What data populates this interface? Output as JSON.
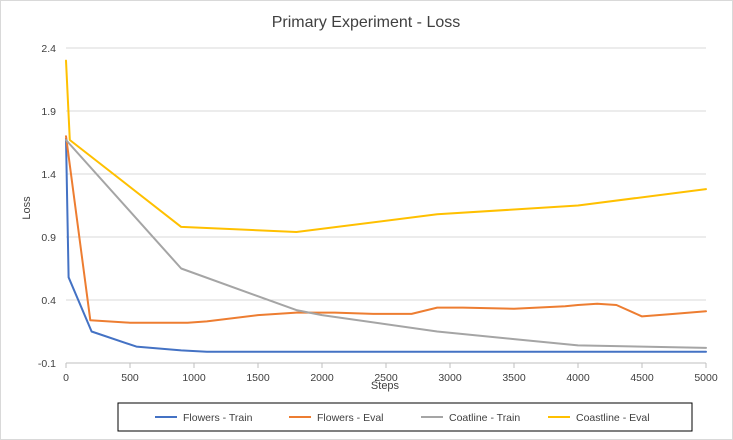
{
  "chart_data": {
    "type": "line",
    "title": "Primary Experiment - Loss",
    "xlabel": "Steps",
    "ylabel": "Loss",
    "xlim": [
      0,
      5000
    ],
    "ylim": [
      -0.1,
      2.4
    ],
    "x_ticks": [
      0,
      500,
      1000,
      1500,
      2000,
      2500,
      3000,
      3500,
      4000,
      4500,
      5000
    ],
    "y_ticks": [
      "-0.1",
      "0.4",
      "0.9",
      "1.4",
      "1.9",
      "2.4"
    ],
    "grid": "horizontal",
    "legend_position": "bottom",
    "series": [
      {
        "name": "Flowers - Train",
        "color": "#4472C4",
        "points": [
          [
            0,
            1.68
          ],
          [
            20,
            0.58
          ],
          [
            200,
            0.15
          ],
          [
            550,
            0.03
          ],
          [
            900,
            0.0
          ],
          [
            1100,
            -0.01
          ],
          [
            2000,
            -0.01
          ],
          [
            3000,
            -0.01
          ],
          [
            4000,
            -0.01
          ],
          [
            5000,
            -0.01
          ]
        ]
      },
      {
        "name": "Flowers - Eval",
        "color": "#ED7D31",
        "points": [
          [
            0,
            1.7
          ],
          [
            190,
            0.24
          ],
          [
            500,
            0.22
          ],
          [
            950,
            0.22
          ],
          [
            1100,
            0.23
          ],
          [
            1500,
            0.28
          ],
          [
            1800,
            0.3
          ],
          [
            2100,
            0.3
          ],
          [
            2400,
            0.29
          ],
          [
            2700,
            0.29
          ],
          [
            2900,
            0.34
          ],
          [
            3100,
            0.34
          ],
          [
            3500,
            0.33
          ],
          [
            3900,
            0.35
          ],
          [
            4000,
            0.36
          ],
          [
            4150,
            0.37
          ],
          [
            4300,
            0.36
          ],
          [
            4500,
            0.27
          ],
          [
            4750,
            0.29
          ],
          [
            5000,
            0.31
          ]
        ]
      },
      {
        "name": "Coatline - Train",
        "color": "#A5A5A5",
        "points": [
          [
            0,
            1.67
          ],
          [
            900,
            0.65
          ],
          [
            1800,
            0.32
          ],
          [
            2000,
            0.28
          ],
          [
            2900,
            0.15
          ],
          [
            3500,
            0.09
          ],
          [
            4000,
            0.04
          ],
          [
            4500,
            0.03
          ],
          [
            5000,
            0.02
          ]
        ]
      },
      {
        "name": "Coastline - Eval",
        "color": "#FFC000",
        "points": [
          [
            0,
            2.3
          ],
          [
            30,
            1.67
          ],
          [
            900,
            0.98
          ],
          [
            1800,
            0.94
          ],
          [
            2900,
            1.08
          ],
          [
            4000,
            1.15
          ],
          [
            5000,
            1.28
          ]
        ]
      }
    ]
  }
}
